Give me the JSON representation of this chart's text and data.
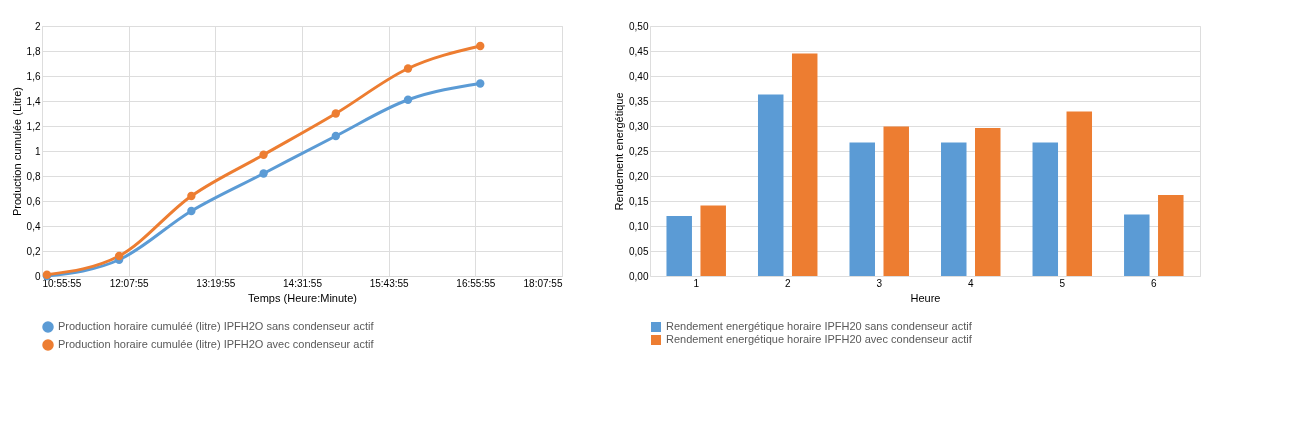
{
  "chart_data": [
    {
      "type": "line",
      "xlabel": "Temps (Heure:Minute)",
      "ylabel": "Production cumulée (Litre)",
      "x": [
        11,
        12,
        13,
        14,
        15,
        16,
        17
      ],
      "series": [
        {
          "name": "Production horaire cumuléé (litre) IPFH2O sans condenseur actif",
          "color": "#5b9bd5",
          "values": [
            0,
            0.13,
            0.52,
            0.82,
            1.12,
            1.41,
            1.54
          ]
        },
        {
          "name": "Production horaire cumulée (litre) IPFH2O avec condenseur actif",
          "color": "#ed7d31",
          "values": [
            0.01,
            0.16,
            0.64,
            0.97,
            1.3,
            1.66,
            1.84
          ]
        }
      ],
      "xlim": [
        10.9319,
        18.1319
      ],
      "xticks": [
        {
          "value": 10.9319,
          "label": "10:55:55"
        },
        {
          "value": 12.1319,
          "label": "12:07:55"
        },
        {
          "value": 13.3319,
          "label": "13:19:55"
        },
        {
          "value": 14.5319,
          "label": "14:31:55"
        },
        {
          "value": 15.7319,
          "label": "15:43:55"
        },
        {
          "value": 16.9319,
          "label": "16:55:55"
        },
        {
          "value": 18.1319,
          "label": "18:07:55"
        }
      ],
      "ylim": [
        0,
        2
      ],
      "yticks": [
        0,
        {
          "value": 0.2,
          "label": "0,2"
        },
        {
          "value": 0.4,
          "label": "0,4"
        },
        {
          "value": 0.6,
          "label": "0,6"
        },
        {
          "value": 0.8,
          "label": "0,8"
        },
        1,
        {
          "value": 1.2,
          "label": "1,2"
        },
        {
          "value": 1.4,
          "label": "1,4"
        },
        {
          "value": 1.6,
          "label": "1,6"
        },
        {
          "value": 1.8,
          "label": "1,8"
        },
        2
      ],
      "grid": true,
      "legend": "bottom",
      "marker": "circle",
      "line_style": "solid"
    },
    {
      "type": "bar",
      "xlabel": "Heure",
      "ylabel": "Rendement energétique",
      "categories": [
        "1",
        "2",
        "3",
        "4",
        "5",
        "6"
      ],
      "series": [
        {
          "name": "Rendement energétique horaire IPFH20 sans condenseur actif",
          "color": "#5b9bd5",
          "values": [
            0.12,
            0.363,
            0.267,
            0.267,
            0.267,
            0.123
          ]
        },
        {
          "name": "Rendement energétique horaire IPFH20 avec condenseur actif",
          "color": "#ed7d31",
          "values": [
            0.141,
            0.445,
            0.299,
            0.296,
            0.329,
            0.162
          ]
        }
      ],
      "ylim": [
        0,
        0.5
      ],
      "yticks": [
        {
          "value": 0,
          "label": "0,00"
        },
        {
          "value": 0.05,
          "label": "0,05"
        },
        {
          "value": 0.1,
          "label": "0,10"
        },
        {
          "value": 0.15,
          "label": "0,15"
        },
        {
          "value": 0.2,
          "label": "0,20"
        },
        {
          "value": 0.25,
          "label": "0,25"
        },
        {
          "value": 0.3,
          "label": "0,30"
        },
        {
          "value": 0.35,
          "label": "0,35"
        },
        {
          "value": 0.4,
          "label": "0,40"
        },
        {
          "value": 0.45,
          "label": "0,45"
        },
        {
          "value": 0.5,
          "label": "0,50"
        }
      ],
      "grid": "y",
      "legend": "bottom"
    }
  ]
}
